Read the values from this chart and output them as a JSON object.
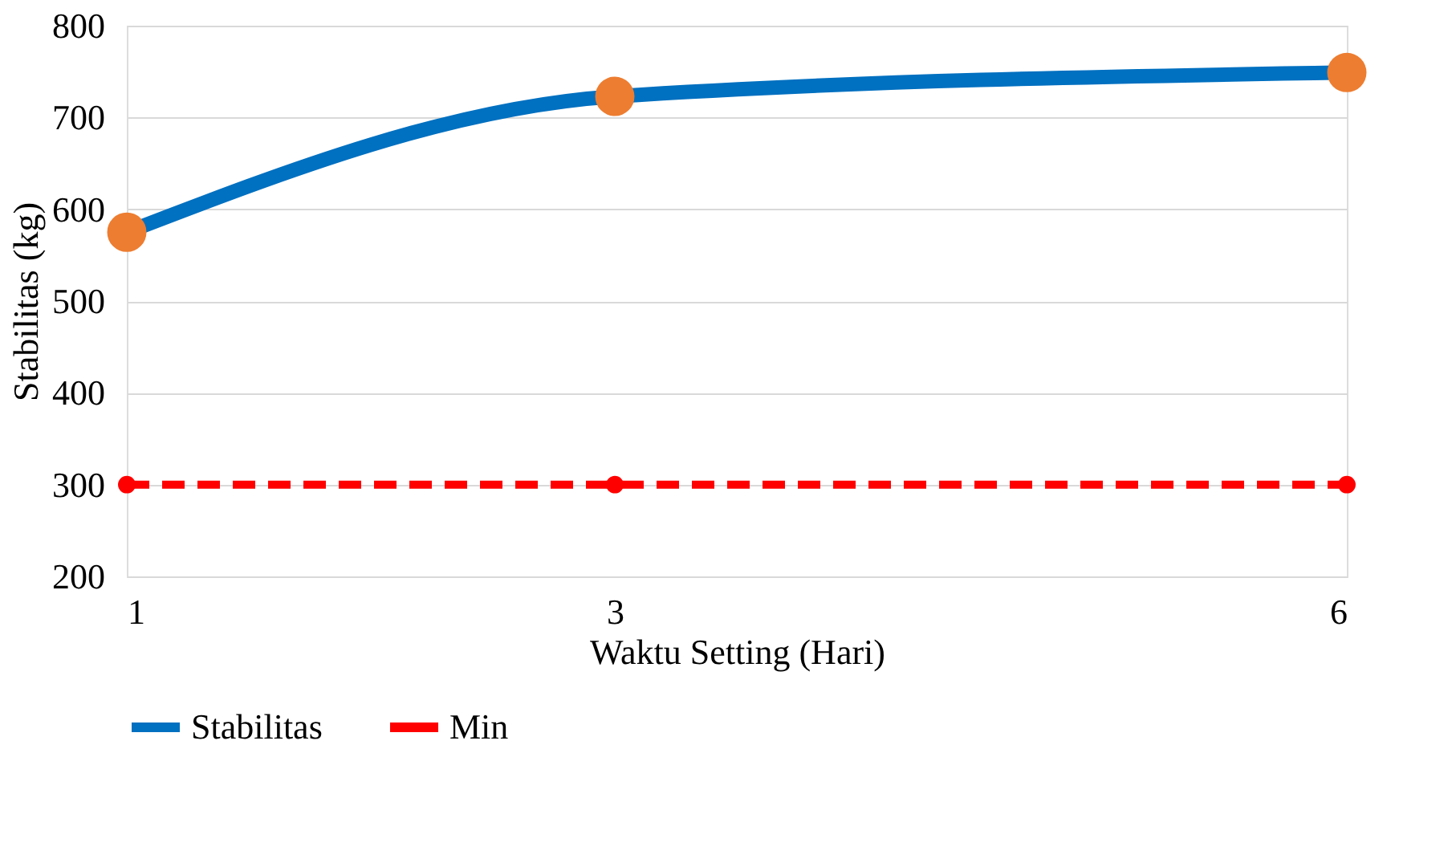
{
  "chart_data": {
    "type": "line",
    "xlabel": "Waktu Setting (Hari)",
    "ylabel": "Stabilitas (kg)",
    "x": [
      1,
      3,
      6
    ],
    "xlim": [
      1,
      6
    ],
    "xticks": [
      1,
      3,
      6
    ],
    "ylim": [
      200,
      800
    ],
    "yticks": [
      200,
      300,
      400,
      500,
      600,
      700,
      800
    ],
    "series": [
      {
        "name": "Stabilitas",
        "color": "#0070c0",
        "colors": [
          "#ed7d31",
          "#ed7d31",
          "#ed7d31"
        ],
        "marker": "circle",
        "line_style": "solid",
        "values": [
          575,
          723,
          749
        ]
      },
      {
        "name": "Min",
        "color": "#ff0000",
        "colors": [
          "#ff0000",
          "#ff0000",
          "#ff0000"
        ],
        "marker": "circle",
        "line_style": "dashed",
        "values": [
          300,
          300,
          300
        ]
      }
    ],
    "grid": "y",
    "legend": "bottom"
  }
}
